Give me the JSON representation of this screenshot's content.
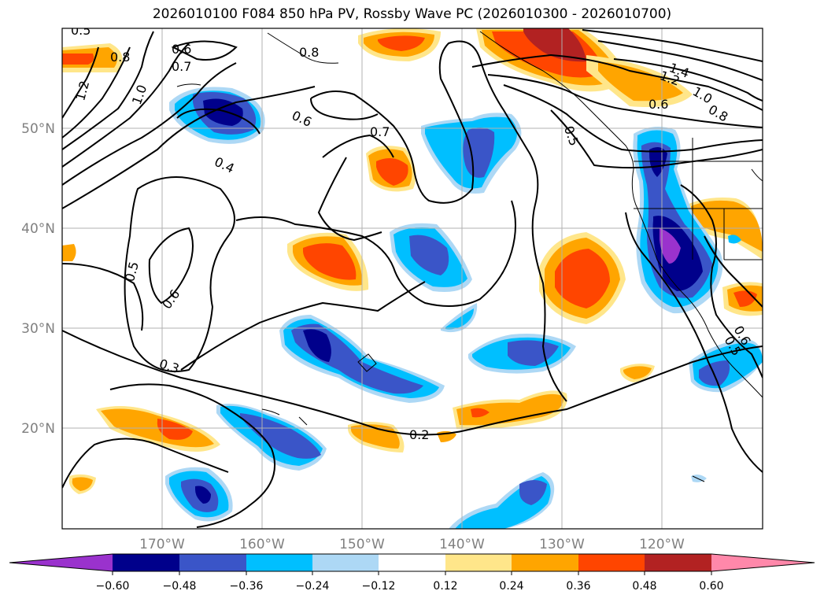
{
  "title": "2026010100 F084 850 hPa PV, Rossby Wave PC (2026010300 - 2026010700)",
  "map": {
    "lat_range": [
      10,
      60
    ],
    "lon_range": [
      -180,
      -110
    ],
    "lat_ticks": [
      "50°N",
      "40°N",
      "30°N",
      "20°N"
    ],
    "lon_ticks": [
      "170°W",
      "160°W",
      "150°W",
      "140°W",
      "130°W",
      "120°W"
    ],
    "contour_labels": [
      "0.5",
      "0.6",
      "0.8",
      "0.7",
      "0.8",
      "1.2",
      "1.0",
      "0.6",
      "0.4",
      "0.7",
      "0.5",
      "0.6",
      "0.3",
      "0.2",
      "1.4",
      "1.2",
      "1.0",
      "0.8",
      "0.6",
      "0.5",
      "0.6",
      "0.5"
    ]
  },
  "colorbar": {
    "ticks": [
      "−0.60",
      "−0.48",
      "−0.36",
      "−0.24",
      "−0.12",
      "0.12",
      "0.24",
      "0.36",
      "0.48",
      "0.60"
    ],
    "colors": [
      "#9a32cd",
      "#00008b",
      "#3a55c8",
      "#00bfff",
      "#add8f5",
      "#ffffff",
      "#ffe68a",
      "#ffa500",
      "#ff4500",
      "#b22222",
      "#ff88aa"
    ]
  }
}
